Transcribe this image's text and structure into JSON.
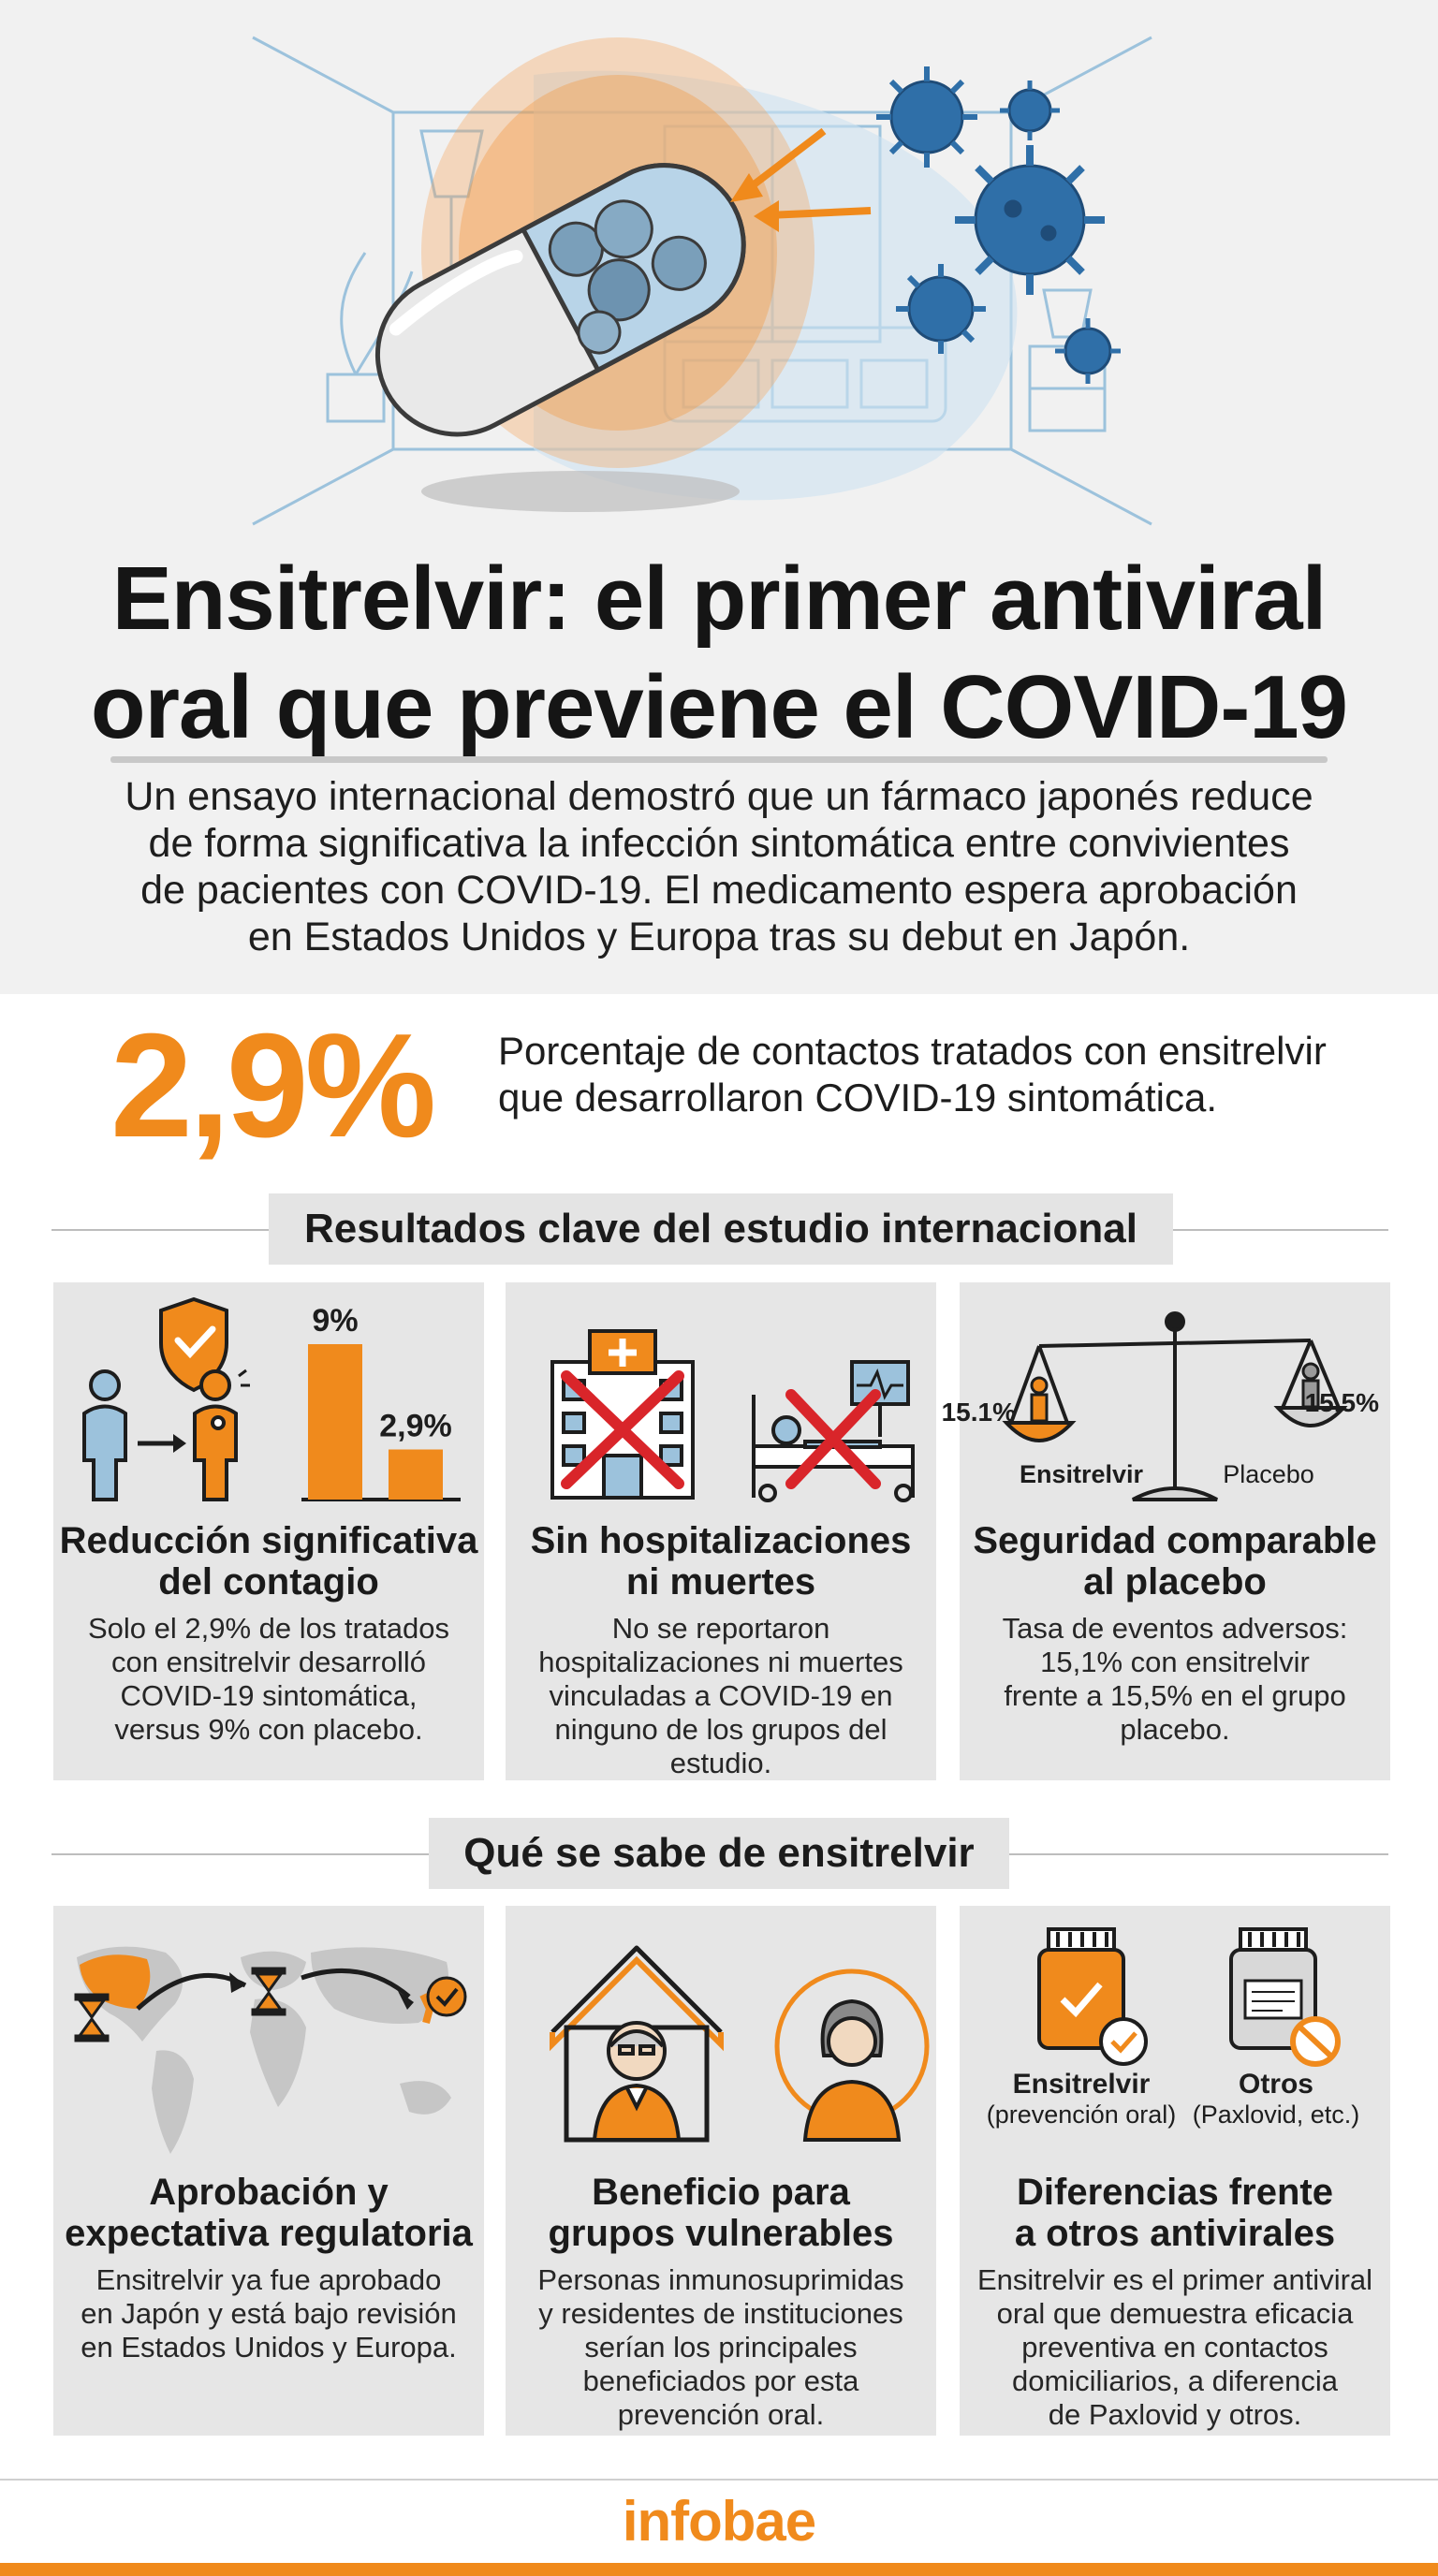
{
  "header": {
    "title_line1": "Ensitrelvir: el primer antiviral",
    "title_line2": "oral que previene el COVID-19",
    "subtitle_line1": "Un ensayo internacional demostró que un fármaco japonés reduce",
    "subtitle_line2": "de forma significativa la infección sintomática entre convivientes",
    "subtitle_line3": "de pacientes con COVID-19. El medicamento espera aprobación",
    "subtitle_line4": "en Estados Unidos y Europa tras su debut en Japón."
  },
  "highlight": {
    "value": "2,9%",
    "desc_line1": "Porcentaje de contactos tratados con ensitrelvir",
    "desc_line2": "que desarrollaron COVID-19 sintomática."
  },
  "section1": {
    "title": "Resultados clave del estudio internacional",
    "cards": [
      {
        "title_line1": "Reducción significativa",
        "title_line2": "del contagio",
        "text_line1": "Solo el 2,9% de los tratados",
        "text_line2": "con ensitrelvir desarrolló",
        "text_line3": "COVID-19 sintomática,",
        "text_line4": "versus 9% con placebo.",
        "bar_label_high": "9%",
        "bar_label_low": "2,9%",
        "bar_values": [
          9,
          2.9
        ]
      },
      {
        "title_line1": "Sin hospitalizaciones",
        "title_line2": "ni muertes",
        "text_line1": "No se reportaron",
        "text_line2": "hospitalizaciones ni muertes",
        "text_line3": "vinculadas a COVID-19 en",
        "text_line4": "ninguno de los grupos del",
        "text_line5": "estudio."
      },
      {
        "title_line1": "Seguridad comparable",
        "title_line2": "al placebo",
        "text_line1": "Tasa de eventos adversos:",
        "text_line2": "15,1% con ensitrelvir",
        "text_line3": "frente a 15,5% en el grupo",
        "text_line4": "placebo.",
        "scale_left_value": "15.1%",
        "scale_right_value": "15.5%",
        "scale_left_label": "Ensitrelvir",
        "scale_right_label": "Placebo"
      }
    ]
  },
  "section2": {
    "title": "Qué se sabe de ensitrelvir",
    "cards": [
      {
        "title_line1": "Aprobación y",
        "title_line2": "expectativa regulatoria",
        "text_line1": "Ensitrelvir ya fue aprobado",
        "text_line2": "en Japón y está bajo revisión",
        "text_line3": "en Estados Unidos y Europa."
      },
      {
        "title_line1": "Beneficio para",
        "title_line2": "grupos vulnerables",
        "text_line1": "Personas inmunosuprimidas",
        "text_line2": "y residentes de instituciones",
        "text_line3": "serían los principales",
        "text_line4": "beneficiados por esta",
        "text_line5": "prevención oral."
      },
      {
        "title_line1": "Diferencias frente",
        "title_line2": "a otros antivirales",
        "text_line1": "Ensitrelvir es el primer antiviral",
        "text_line2": "oral que demuestra eficacia",
        "text_line3": "preventiva en contactos",
        "text_line4": "domiciliarios, a diferencia",
        "text_line5": "de Paxlovid y otros.",
        "left_label": "Ensitrelvir",
        "left_sublabel": "(prevención oral)",
        "right_label": "Otros",
        "right_sublabel": "(Paxlovid, etc.)"
      }
    ]
  },
  "footer": {
    "logo": "infobae"
  },
  "colors": {
    "accent": "#f08a1c",
    "dark": "#1d1d1d",
    "panel": "#e6e6e6",
    "virus": "#2f6fa8",
    "danger": "#d9252a"
  },
  "icons": [
    "capsule-icon",
    "virus-icon",
    "shield-check-icon",
    "person-icon",
    "hospital-icon",
    "hospital-bed-icon",
    "scale-icon",
    "world-map-icon",
    "hourglass-icon",
    "house-icon",
    "elderly-person-icon",
    "pill-bottle-icon",
    "prohibited-icon"
  ]
}
